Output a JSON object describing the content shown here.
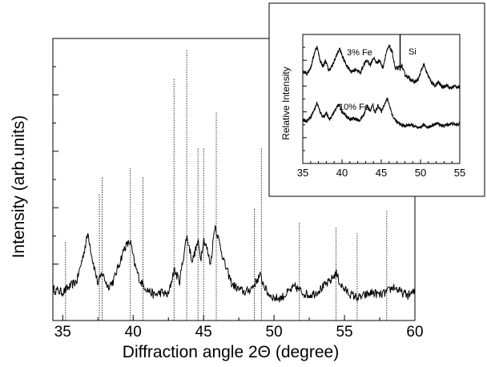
{
  "chart_data": [
    {
      "type": "line",
      "title": "",
      "xlabel": "Diffraction angle 2Θ (degree)",
      "ylabel": "Intensity (arb.units)",
      "xlim": [
        34.3,
        60.0
      ],
      "ylim": [
        0,
        100
      ],
      "x_ticks": [
        35,
        40,
        45,
        50,
        55,
        60
      ],
      "x_tick_labels": [
        "35",
        "40",
        "45",
        "50",
        "55",
        "60"
      ],
      "grid": false,
      "series": [
        {
          "name": "",
          "x": [
            34.3,
            35.0,
            35.5,
            36.0,
            36.4,
            36.8,
            37.1,
            37.5,
            37.8,
            38.2,
            38.6,
            39.0,
            39.4,
            39.8,
            40.1,
            40.5,
            41.0,
            41.5,
            42.0,
            42.5,
            42.9,
            43.3,
            43.8,
            44.2,
            44.6,
            44.8,
            45.0,
            45.2,
            45.5,
            45.8,
            46.1,
            46.5,
            47.0,
            47.5,
            48.0,
            48.5,
            49.0,
            49.5,
            50.0,
            50.5,
            51.0,
            51.5,
            52.0,
            52.5,
            53.0,
            53.5,
            54.0,
            54.4,
            54.7,
            55.0,
            55.5,
            56.0,
            56.5,
            57.0,
            57.5,
            58.0,
            58.5,
            59.0,
            59.5,
            60.0
          ],
          "y": [
            11,
            10,
            12,
            14,
            22,
            31,
            22,
            13,
            17,
            12,
            14,
            20,
            26,
            28,
            20,
            14,
            11,
            9,
            10,
            9,
            18,
            14,
            30,
            21,
            28,
            22,
            29,
            26,
            20,
            34,
            28,
            20,
            13,
            11,
            10,
            12,
            16,
            10,
            8,
            8,
            10,
            12,
            10,
            9,
            10,
            12,
            14,
            17,
            13,
            11,
            9,
            8,
            9,
            10,
            9,
            10,
            12,
            10,
            9,
            10
          ]
        }
      ],
      "reference_lines": {
        "x": [
          35.2,
          37.6,
          37.8,
          39.8,
          40.7,
          42.9,
          43.8,
          44.6,
          45.0,
          45.9,
          48.6,
          49.1,
          51.8,
          54.4,
          55.9,
          58.0
        ],
        "height": [
          28,
          45,
          51,
          54,
          51,
          86,
          96,
          61,
          61,
          74,
          40,
          61,
          35,
          33,
          31,
          39
        ]
      }
    },
    {
      "type": "line",
      "title": "",
      "xlabel": "",
      "ylabel": "Relative Intensity",
      "xlim": [
        35,
        55
      ],
      "ylim": [
        0,
        100
      ],
      "x_ticks": [
        35,
        40,
        45,
        50,
        55
      ],
      "x_tick_labels": [
        "35",
        "40",
        "45",
        "50",
        "55"
      ],
      "annotations": [
        "3% Fe",
        "10% Fe",
        "Si"
      ],
      "annotation_x": [
        47.4
      ],
      "series": [
        {
          "name": "3% Fe",
          "x": [
            35.0,
            35.5,
            36.0,
            36.5,
            36.8,
            37.2,
            37.6,
            37.9,
            38.3,
            38.8,
            39.3,
            39.7,
            40.1,
            40.6,
            41.2,
            41.8,
            42.3,
            42.8,
            43.2,
            43.6,
            44.0,
            44.4,
            44.8,
            45.2,
            45.6,
            46.0,
            46.4,
            46.8,
            47.2,
            47.6,
            48.0,
            48.6,
            49.2,
            49.7,
            50.1,
            50.4,
            50.8,
            51.3,
            51.8,
            52.3,
            52.8,
            53.3,
            53.8,
            54.3,
            55.0
          ],
          "y": [
            72,
            70,
            74,
            86,
            91,
            80,
            75,
            80,
            72,
            76,
            84,
            89,
            82,
            76,
            71,
            73,
            70,
            77,
            80,
            76,
            82,
            78,
            80,
            74,
            85,
            91,
            86,
            73,
            74,
            76,
            69,
            66,
            63,
            65,
            72,
            77,
            70,
            64,
            60,
            63,
            59,
            61,
            58,
            60,
            59
          ]
        },
        {
          "name": "10% Fe",
          "x": [
            35.0,
            35.5,
            36.0,
            36.5,
            36.8,
            37.2,
            37.6,
            38.0,
            38.4,
            38.8,
            39.2,
            39.6,
            40.0,
            40.5,
            41.0,
            41.6,
            42.2,
            42.8,
            43.2,
            43.6,
            43.9,
            44.2,
            44.6,
            45.0,
            45.4,
            45.8,
            46.1,
            46.5,
            47.0,
            47.5,
            48.0,
            48.6,
            49.2,
            49.8,
            50.4,
            51.0,
            51.6,
            52.2,
            52.8,
            53.4,
            54.0,
            54.5,
            55.0
          ],
          "y": [
            34,
            33,
            36,
            42,
            47,
            40,
            36,
            39,
            34,
            38,
            42,
            46,
            40,
            37,
            34,
            35,
            33,
            38,
            45,
            40,
            46,
            39,
            45,
            40,
            46,
            50,
            44,
            36,
            32,
            30,
            29,
            30,
            29,
            27,
            30,
            28,
            30,
            31,
            29,
            30,
            31,
            30,
            31
          ]
        }
      ]
    }
  ]
}
